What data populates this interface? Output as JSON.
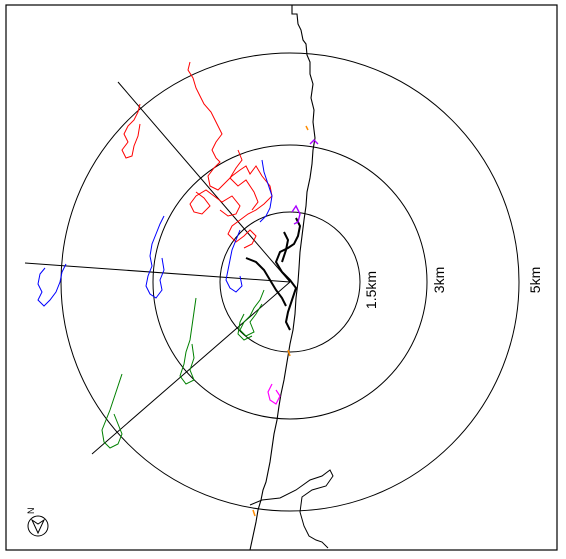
{
  "map": {
    "rings": [
      {
        "label": "1.5km",
        "radius_km": 1.5
      },
      {
        "label": "3km",
        "radius_km": 3
      },
      {
        "label": "5km",
        "radius_km": 5
      }
    ],
    "north_arrow": {
      "label": "N"
    },
    "track_colors": {
      "red": "#ff0000",
      "blue": "#0000ff",
      "green": "#008000",
      "black": "#000000",
      "purple": "#aa00ff",
      "magenta": "#ff00ff",
      "orange": "#ff8c00"
    }
  }
}
